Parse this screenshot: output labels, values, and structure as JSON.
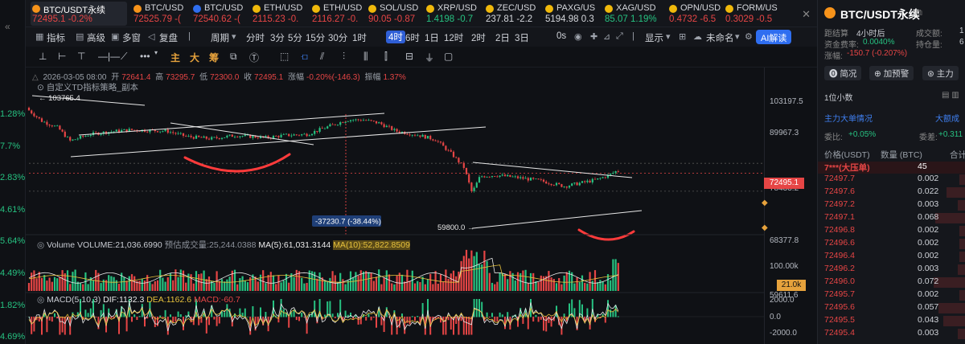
{
  "left_strip": {
    "values": [
      "1.28%",
      "7.7%",
      "2.83%",
      "4.61%",
      "5.64%",
      "4.49%",
      "1.82%",
      "4.69%"
    ]
  },
  "tickers": [
    {
      "symbol": "BTC/USDT永续",
      "price": "72495.1",
      "change": "-0.2%",
      "color": "#e64545",
      "dot": "#f7931a",
      "active": true
    },
    {
      "symbol": "BTC/USD",
      "price": "72525.79",
      "change": "-(",
      "color": "#e64545",
      "dot": "#f7931a"
    },
    {
      "symbol": "BTC/USD",
      "price": "72540.62",
      "change": "-(",
      "color": "#e64545",
      "dot": "#2f6ef0"
    },
    {
      "symbol": "ETH/USD",
      "price": "2115.23",
      "change": "-0.",
      "color": "#e64545",
      "dot": "#f0b90b"
    },
    {
      "symbol": "ETH/USD",
      "price": "2116.27",
      "change": "-0.",
      "color": "#e64545",
      "dot": "#f0b90b"
    },
    {
      "symbol": "SOL/USD",
      "price": "90.05",
      "change": "-0.87",
      "color": "#e64545",
      "dot": "#f0b90b"
    },
    {
      "symbol": "XRP/USD",
      "price": "1.4198",
      "change": "-0.7",
      "color": "#26c281",
      "dot": "#f0b90b"
    },
    {
      "symbol": "ZEC/USD",
      "price": "237.81",
      "change": "-2.2",
      "color": "#d6d8dd",
      "dot": "#f0b90b"
    },
    {
      "symbol": "PAXG/US",
      "price": "5194.98",
      "change": "0.3",
      "color": "#d6d8dd",
      "dot": "#f0b90b"
    },
    {
      "symbol": "XAG/USD",
      "price": "85.07",
      "change": "1.19%",
      "color": "#26c281",
      "dot": "#f0b90b"
    },
    {
      "symbol": "OPN/USD",
      "price": "0.4732",
      "change": "-6.5",
      "color": "#e64545",
      "dot": "#f0b90b"
    },
    {
      "symbol": "FORM/US",
      "price": "0.3029",
      "change": "-0.5",
      "color": "#e64545",
      "dot": "#f0b90b"
    }
  ],
  "toolbar": {
    "indicators": "指标",
    "advanced": "高级",
    "multi": "多窗",
    "replay": "复盘",
    "period": "周期",
    "timeframes": [
      "分时",
      "3分",
      "5分",
      "15分",
      "30分",
      "1时",
      "4时",
      "6时",
      "1日",
      "12时",
      "2时",
      "2日",
      "3日"
    ],
    "active_timeframe": "4时",
    "seconds": "0s",
    "display": "显示",
    "login": "未命名",
    "ai": "AI解读"
  },
  "draw_bar": {
    "main": "主",
    "big": "大",
    "chip": "筹"
  },
  "chart": {
    "info": {
      "date": "2026-03-05 08:00",
      "open_label": "开",
      "open": "72641.4",
      "high_label": "高",
      "high": "73295.7",
      "low_label": "低",
      "low": "72300.0",
      "close_label": "收",
      "close": "72495.1",
      "change_label": "涨幅",
      "change": "-0.20%(-146.3)",
      "amp_label": "振幅",
      "amp": "1.37%"
    },
    "custom_label": "自定义TD指标策略_副本",
    "annotations": {
      "high_label": "103765.4",
      "low_label": "59800.0",
      "measure": "-37230.7 (-38.44%)"
    },
    "price_axis": [
      "103197.5",
      "89967.3",
      "78433.2",
      "68377.8",
      "59611.6"
    ],
    "current_price": "72495.1",
    "volume": {
      "label": "Volume",
      "vol": "VOLUME:21,036.6990",
      "pred_label": "预估成交量:25,244.0388",
      "ma5": "MA(5):61,031.3144",
      "ma10": "MA(10):52,822.8509",
      "axis": [
        "100.00k",
        "21.0k"
      ]
    },
    "macd": {
      "label": "MACD(5,10,3)",
      "dif": "DIF:1132.3",
      "dea": "DEA:1162.6",
      "macd": "MACD:-60.7",
      "axis": [
        "2000.0",
        "0.0",
        "-2000.0"
      ]
    },
    "colors": {
      "up": "#26c281",
      "down": "#e64545",
      "ma5": "#e9e9e9",
      "ma10": "#e6c13c",
      "marker": "#ff3b3b"
    }
  },
  "right_panel": {
    "title": "BTC/USDT永续",
    "funding_countdown_label": "距结算",
    "funding_countdown": "4小时后",
    "funding_rate_label": "资金费率:",
    "funding_rate": "0.0040%",
    "change_label": "涨幅:",
    "change": "-150.7 (-0.207%)",
    "volume_label": "成交额:",
    "volume": "1",
    "oi_label": "持仓量:",
    "oi": "6",
    "buttons": [
      "简况",
      "加预警",
      "主力"
    ],
    "decimal": "1位小数",
    "big_orders": "主力大单情况",
    "big_trades": "大额成",
    "ratio_label": "委比:",
    "ratio": "+0.05%",
    "diff_label": "委差:",
    "diff": "+0.311",
    "price_col": "价格(USDT)",
    "qty_col": "数量 (BTC)",
    "total_col": "合计",
    "top_row": {
      "price": "7***(大压单)",
      "qty": "45"
    },
    "asks": [
      {
        "price": "72497.7",
        "qty": "0.002",
        "w": 8
      },
      {
        "price": "72497.6",
        "qty": "0.022",
        "w": 24
      },
      {
        "price": "72497.2",
        "qty": "0.003",
        "w": 10
      },
      {
        "price": "72497.1",
        "qty": "0.068",
        "w": 38
      },
      {
        "price": "72496.8",
        "qty": "0.002",
        "w": 8
      },
      {
        "price": "72496.6",
        "qty": "0.002",
        "w": 8
      },
      {
        "price": "72496.4",
        "qty": "0.002",
        "w": 8
      },
      {
        "price": "72496.2",
        "qty": "0.003",
        "w": 10
      },
      {
        "price": "72496.0",
        "qty": "0.072",
        "w": 40
      },
      {
        "price": "72495.7",
        "qty": "0.002",
        "w": 8
      },
      {
        "price": "72495.6",
        "qty": "0.057",
        "w": 34
      },
      {
        "price": "72495.5",
        "qty": "0.043",
        "w": 28
      },
      {
        "price": "72495.4",
        "qty": "0.003",
        "w": 10
      }
    ]
  }
}
